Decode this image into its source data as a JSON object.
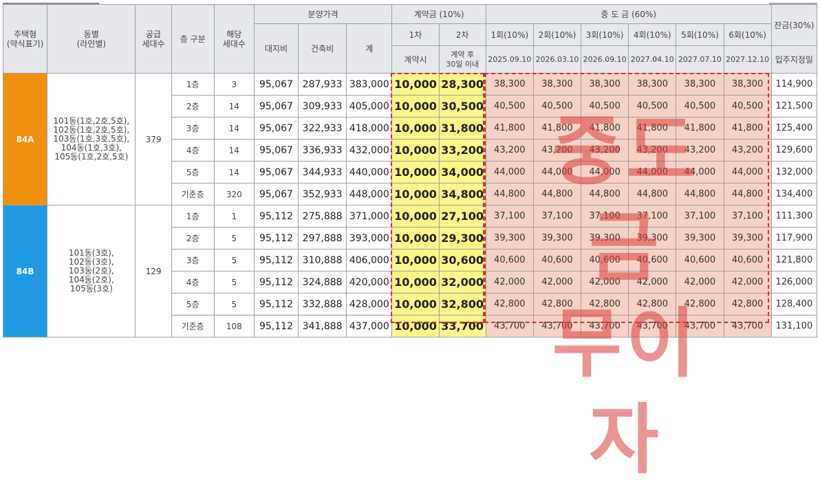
{
  "header": {
    "housing_type": "주택형\n(약식표기)",
    "dong": "동별\n(라인별)",
    "supply_units": "공급\n세대수",
    "floor_group": "층 구분",
    "units": "해당\n세대수",
    "price_group": "분양가격",
    "land": "대지비",
    "building": "건축비",
    "total": "계",
    "deposit_group": "계약금 (10%)",
    "deposit_1": "1차",
    "deposit_2": "2차",
    "deposit_1_when": "계약시",
    "deposit_2_when": "계약 후\n30일 이내",
    "mid_group": "중 도 금 (60%)",
    "mid_labels": [
      "1회(10%)",
      "2회(10%)",
      "3회(10%)",
      "4회(10%)",
      "5회(10%)",
      "6회(10%)"
    ],
    "mid_dates": [
      "2025.09.10",
      "2026.03.10",
      "2026.09.10",
      "2027.04.10",
      "2027.07.10",
      "2027.12.10"
    ],
    "balance_group": "잔금(30%)",
    "balance_when": "입주지정일"
  },
  "watermark": "중도금\n무이자",
  "groups": [
    {
      "type": "84A",
      "dong": "101동(1호,2호,5호),\n102동(1호,2호,5호),\n103동(1호,3호,5호),\n104동(1호,3호),\n105동(1호,2호,5호)",
      "supply": "379",
      "rows": [
        {
          "floor": "1층",
          "units": "3",
          "land": "95,067",
          "building": "287,933",
          "total": "383,000",
          "dep1": "10,000",
          "dep2": "28,300",
          "mid": [
            "38,300",
            "38,300",
            "38,300",
            "38,300",
            "38,300",
            "38,300"
          ],
          "balance": "114,900"
        },
        {
          "floor": "2층",
          "units": "14",
          "land": "95,067",
          "building": "309,933",
          "total": "405,000",
          "dep1": "10,000",
          "dep2": "30,500",
          "mid": [
            "40,500",
            "40,500",
            "40,500",
            "40,500",
            "40,500",
            "40,500"
          ],
          "balance": "121,500"
        },
        {
          "floor": "3층",
          "units": "14",
          "land": "95,067",
          "building": "322,933",
          "total": "418,000",
          "dep1": "10,000",
          "dep2": "31,800",
          "mid": [
            "41,800",
            "41,800",
            "41,800",
            "41,800",
            "41,800",
            "41,800"
          ],
          "balance": "125,400"
        },
        {
          "floor": "4층",
          "units": "14",
          "land": "95,067",
          "building": "336,933",
          "total": "432,000",
          "dep1": "10,000",
          "dep2": "33,200",
          "mid": [
            "43,200",
            "43,200",
            "43,200",
            "43,200",
            "43,200",
            "43,200"
          ],
          "balance": "129,600"
        },
        {
          "floor": "5층",
          "units": "14",
          "land": "95,067",
          "building": "344,933",
          "total": "440,000",
          "dep1": "10,000",
          "dep2": "34,000",
          "mid": [
            "44,000",
            "44,000",
            "44,000",
            "44,000",
            "44,000",
            "44,000"
          ],
          "balance": "132,000"
        },
        {
          "floor": "기준층",
          "units": "320",
          "land": "95,067",
          "building": "352,933",
          "total": "448,000",
          "dep1": "10,000",
          "dep2": "34,800",
          "mid": [
            "44,800",
            "44,800",
            "44,800",
            "44,800",
            "44,800",
            "44,800"
          ],
          "balance": "134,400"
        }
      ]
    },
    {
      "type": "84B",
      "dong": "101동(3호),\n102동(3호),\n103동(2호),\n104동(2호),\n105동(3호)",
      "supply": "129",
      "rows": [
        {
          "floor": "1층",
          "units": "1",
          "land": "95,112",
          "building": "275,888",
          "total": "371,000",
          "dep1": "10,000",
          "dep2": "27,100",
          "mid": [
            "37,100",
            "37,100",
            "37,100",
            "37,100",
            "37,100",
            "37,100"
          ],
          "balance": "111,300"
        },
        {
          "floor": "2층",
          "units": "5",
          "land": "95,112",
          "building": "297,888",
          "total": "393,000",
          "dep1": "10,000",
          "dep2": "29,300",
          "mid": [
            "39,300",
            "39,300",
            "39,300",
            "39,300",
            "39,300",
            "39,300"
          ],
          "balance": "117,900"
        },
        {
          "floor": "3층",
          "units": "5",
          "land": "95,112",
          "building": "310,888",
          "total": "406,000",
          "dep1": "10,000",
          "dep2": "30,600",
          "mid": [
            "40,600",
            "40,600",
            "40,600",
            "40,600",
            "40,600",
            "40,600"
          ],
          "balance": "121,800"
        },
        {
          "floor": "4층",
          "units": "5",
          "land": "95,112",
          "building": "324,888",
          "total": "420,000",
          "dep1": "10,000",
          "dep2": "32,000",
          "mid": [
            "42,000",
            "42,000",
            "42,000",
            "42,000",
            "42,000",
            "42,000"
          ],
          "balance": "126,000"
        },
        {
          "floor": "5층",
          "units": "5",
          "land": "95,112",
          "building": "332,888",
          "total": "428,000",
          "dep1": "10,000",
          "dep2": "32,800",
          "mid": [
            "42,800",
            "42,800",
            "42,800",
            "42,800",
            "42,800",
            "42,800"
          ],
          "balance": "128,400"
        },
        {
          "floor": "기준층",
          "units": "108",
          "land": "95,112",
          "building": "341,888",
          "total": "437,000",
          "dep1": "10,000",
          "dep2": "33,700",
          "mid": [
            "43,700",
            "43,700",
            "43,700",
            "43,700",
            "43,700",
            "43,700"
          ],
          "balance": "131,100"
        }
      ]
    }
  ],
  "colors": {
    "type_a": "#f0900f",
    "type_b": "#1f9ae0",
    "deposit": "#fbf58a",
    "mid": "#f6d2c4",
    "highlight": "#d0332e"
  }
}
